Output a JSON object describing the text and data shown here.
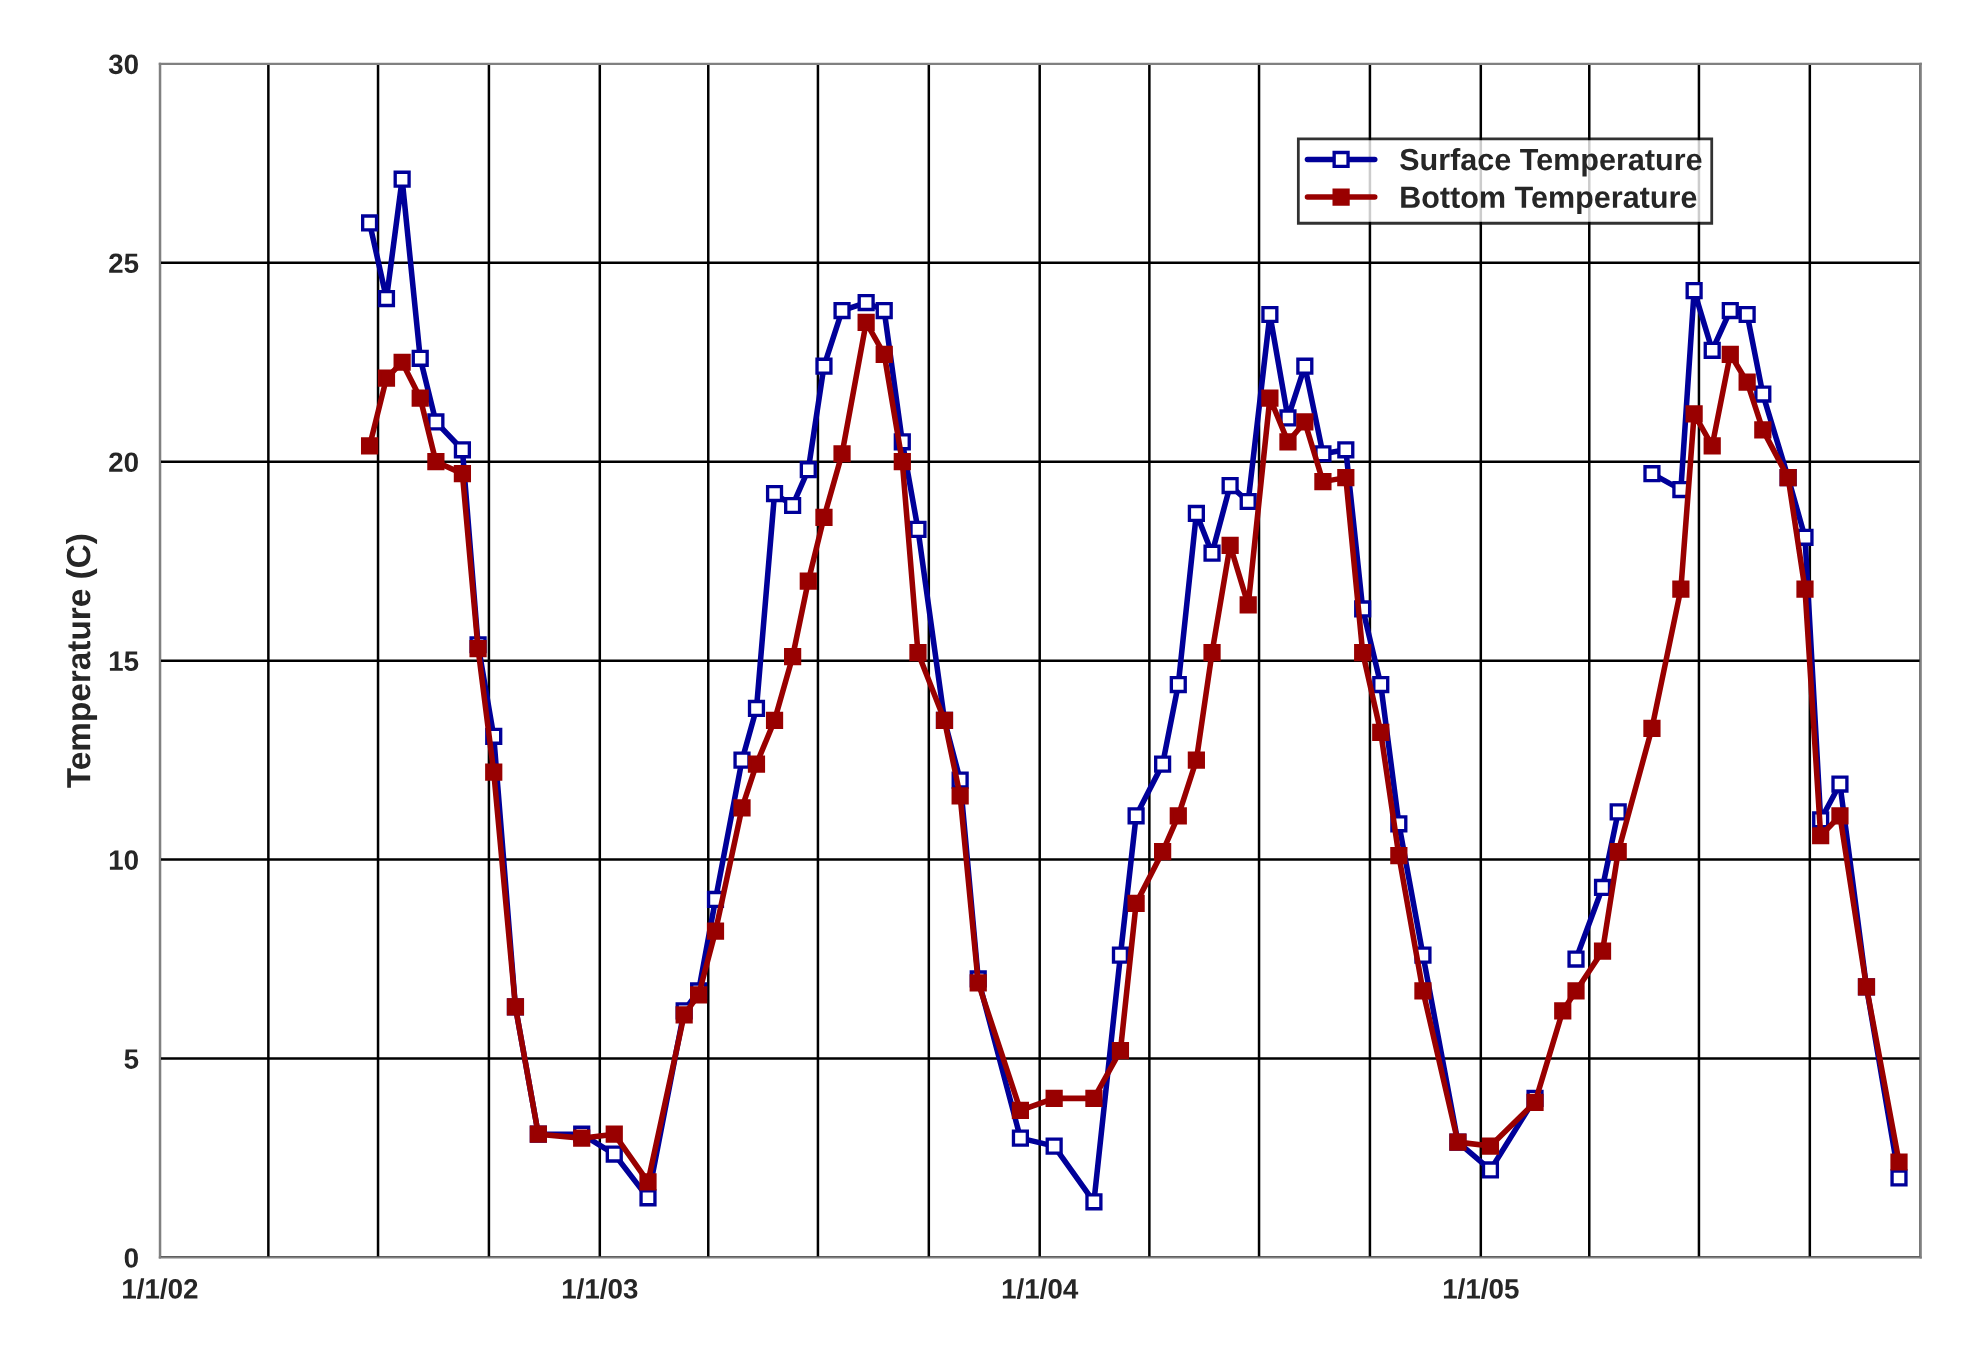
{
  "chart_data": {
    "type": "line",
    "ylabel": "Temperature (C)",
    "xlim": [
      "2002-01-01",
      "2006-01-01"
    ],
    "xticks": [
      {
        "value": "2002-01-01",
        "label": "1/1/02"
      },
      {
        "value": "2002-04-01",
        "label": null
      },
      {
        "value": "2002-07-01",
        "label": null
      },
      {
        "value": "2002-10-01",
        "label": null
      },
      {
        "value": "2003-01-01",
        "label": "1/1/03"
      },
      {
        "value": "2003-04-01",
        "label": null
      },
      {
        "value": "2003-07-01",
        "label": null
      },
      {
        "value": "2003-10-01",
        "label": null
      },
      {
        "value": "2004-01-01",
        "label": "1/1/04"
      },
      {
        "value": "2004-04-01",
        "label": null
      },
      {
        "value": "2004-07-01",
        "label": null
      },
      {
        "value": "2004-10-01",
        "label": null
      },
      {
        "value": "2005-01-01",
        "label": "1/1/05"
      },
      {
        "value": "2005-04-01",
        "label": null
      },
      {
        "value": "2005-07-01",
        "label": null
      },
      {
        "value": "2005-10-01",
        "label": null
      },
      {
        "value": "2006-01-01",
        "label": null
      }
    ],
    "ylim": [
      0,
      30
    ],
    "yticks": [
      0,
      5,
      10,
      15,
      20,
      25,
      30
    ],
    "grid": true,
    "legend": "top right",
    "marker": "square",
    "line_style": "solid",
    "series": [
      {
        "name": "Surface Temperature",
        "color": "#000099",
        "x": [
          "2002-06-24",
          "2002-07-08",
          "2002-07-21",
          "2002-08-05",
          "2002-08-18",
          "2002-09-09",
          "2002-09-22",
          "2002-10-05",
          "2002-10-23",
          "2002-11-11",
          "2002-12-17",
          "2003-01-13",
          "2003-02-10",
          "2003-03-12",
          "2003-03-24",
          "2003-04-07",
          "2003-04-29",
          "2003-05-11",
          "2003-05-26",
          "2003-06-10",
          "2003-06-23",
          "2003-07-06",
          "2003-07-21",
          "2003-08-10",
          "2003-08-25",
          "2003-09-09",
          "2003-09-22",
          "2003-10-14",
          "2003-10-27",
          "2003-11-11",
          "2003-12-16",
          "2004-01-13",
          "2004-02-15",
          "2004-03-08",
          "2004-03-21",
          "2004-04-12",
          "2004-04-25",
          "2004-05-10",
          "2004-05-23",
          "2004-06-07",
          "2004-06-22",
          "2004-07-10",
          "2004-07-25",
          "2004-08-08",
          "2004-08-23",
          "2004-09-11",
          "2004-09-25",
          "2004-10-10",
          "2004-10-25",
          "2004-11-14",
          "2004-12-13",
          "2005-01-09",
          "2005-02-15",
          "2005-03-10",
          "2005-03-21",
          "2005-04-12",
          "2005-04-25",
          "2005-05-08",
          "2005-05-23",
          "2005-06-16",
          "2005-06-27",
          "2005-07-12",
          "2005-07-27",
          "2005-08-10",
          "2005-08-23",
          "2005-09-13",
          "2005-09-27",
          "2005-10-10",
          "2005-10-26",
          "2005-11-17",
          "2005-12-14"
        ],
        "values": [
          26.0,
          24.1,
          27.1,
          22.6,
          21.0,
          20.3,
          15.4,
          13.1,
          6.3,
          3.1,
          3.1,
          2.6,
          1.5,
          6.2,
          6.7,
          9.0,
          12.5,
          13.8,
          19.2,
          18.9,
          19.8,
          22.4,
          23.8,
          24.0,
          23.8,
          20.5,
          18.3,
          13.5,
          12.0,
          7.0,
          3.0,
          2.8,
          1.4,
          7.6,
          11.1,
          12.4,
          14.4,
          18.7,
          17.7,
          19.4,
          19.0,
          23.7,
          21.1,
          22.4,
          20.2,
          20.3,
          16.3,
          14.4,
          10.9,
          7.6,
          2.9,
          2.2,
          4.0,
          null,
          7.5,
          9.3,
          11.2,
          null,
          19.7,
          19.3,
          24.3,
          22.8,
          23.8,
          23.7,
          21.7,
          19.6,
          18.1,
          11.0,
          11.9,
          6.8,
          2.0
        ]
      },
      {
        "name": "Bottom Temperature",
        "color": "#990000",
        "x": [
          "2002-06-24",
          "2002-07-08",
          "2002-07-21",
          "2002-08-05",
          "2002-08-18",
          "2002-09-09",
          "2002-09-22",
          "2002-10-05",
          "2002-10-23",
          "2002-11-11",
          "2002-12-17",
          "2003-01-13",
          "2003-02-10",
          "2003-03-12",
          "2003-03-24",
          "2003-04-07",
          "2003-04-29",
          "2003-05-11",
          "2003-05-26",
          "2003-06-10",
          "2003-06-23",
          "2003-07-06",
          "2003-07-21",
          "2003-08-10",
          "2003-08-25",
          "2003-09-09",
          "2003-09-22",
          "2003-10-14",
          "2003-10-27",
          "2003-11-11",
          "2003-12-16",
          "2004-01-13",
          "2004-02-15",
          "2004-03-08",
          "2004-03-21",
          "2004-04-12",
          "2004-04-25",
          "2004-05-10",
          "2004-05-23",
          "2004-06-07",
          "2004-06-22",
          "2004-07-10",
          "2004-07-25",
          "2004-08-08",
          "2004-08-23",
          "2004-09-11",
          "2004-09-25",
          "2004-10-10",
          "2004-10-25",
          "2004-11-14",
          "2004-12-13",
          "2005-01-09",
          "2005-02-15",
          "2005-03-10",
          "2005-03-21",
          "2005-04-12",
          "2005-04-25",
          "2005-05-23",
          "2005-06-16",
          "2005-06-27",
          "2005-07-12",
          "2005-07-27",
          "2005-08-10",
          "2005-08-23",
          "2005-09-13",
          "2005-09-27",
          "2005-10-10",
          "2005-10-26",
          "2005-11-17",
          "2005-12-14"
        ],
        "values": [
          20.4,
          22.1,
          22.5,
          21.6,
          20.0,
          19.7,
          15.3,
          12.2,
          6.3,
          3.1,
          3.0,
          3.1,
          1.9,
          6.1,
          6.6,
          8.2,
          11.3,
          12.4,
          13.5,
          15.1,
          17.0,
          18.6,
          20.2,
          23.5,
          22.7,
          20.0,
          15.2,
          13.5,
          11.6,
          6.9,
          3.7,
          4.0,
          4.0,
          5.2,
          8.9,
          10.2,
          11.1,
          12.5,
          15.2,
          17.9,
          16.4,
          21.6,
          20.5,
          21.0,
          19.5,
          19.6,
          15.2,
          13.2,
          10.1,
          6.7,
          2.9,
          2.8,
          3.9,
          6.2,
          6.7,
          7.7,
          10.2,
          13.3,
          16.8,
          21.2,
          20.4,
          22.7,
          22.0,
          20.8,
          19.6,
          16.8,
          10.6,
          11.1,
          6.8,
          2.4
        ]
      }
    ]
  }
}
